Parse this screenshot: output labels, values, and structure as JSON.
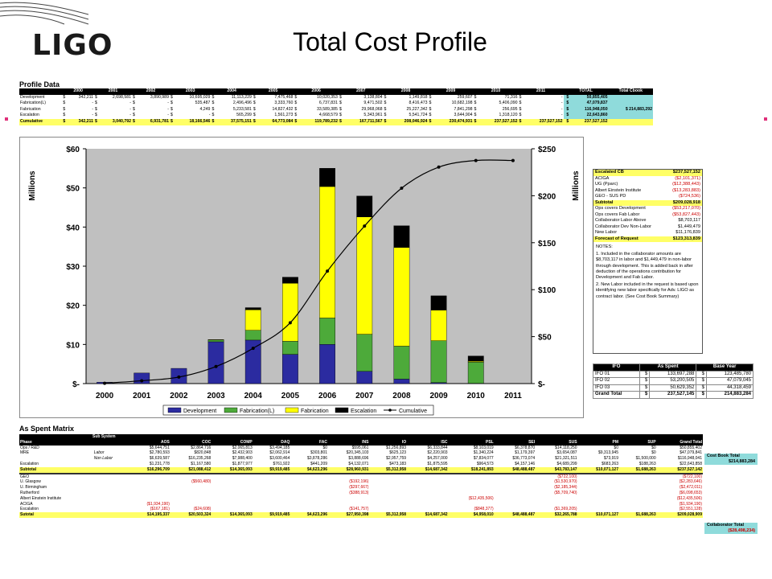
{
  "header": {
    "logo": "LIGO",
    "title": "Total Cost Profile"
  },
  "profile": {
    "title": "Profile Data",
    "columns": [
      "2000",
      "2001",
      "2002",
      "2003",
      "2004",
      "2005",
      "2006",
      "2007",
      "2008",
      "2009",
      "2010",
      "2011",
      "TOTAL",
      "Total Cbook"
    ],
    "rows": [
      {
        "label": "Development",
        "cells": [
          "$",
          "342,211",
          "$",
          "2,698,581",
          "$",
          "3,890,989",
          "$",
          "10,695,029",
          "$",
          "11,113,229",
          "$",
          "7,475,468",
          "$",
          "10,020,353",
          "$",
          "3,138,804",
          "$",
          "1,149,818",
          "$",
          "259,607",
          "$",
          "71,316",
          "$",
          "-",
          "$",
          "50,855,405"
        ],
        "cbook": ""
      },
      {
        "label": "Fabrication(L)",
        "cells": [
          "$",
          "-",
          "$",
          "-",
          "$",
          "-",
          "$",
          "535,487",
          "$",
          "2,496,496",
          "$",
          "3,333,760",
          "$",
          "6,737,831",
          "$",
          "9,471,502",
          "$",
          "8,416,473",
          "$",
          "10,682,198",
          "$",
          "5,406,090",
          "$",
          "-",
          "$",
          "47,079,837"
        ],
        "cbook": ""
      },
      {
        "label": "Fabrication",
        "cells": [
          "$",
          "-",
          "$",
          "-",
          "$",
          "-",
          "$",
          "4,249",
          "$",
          "5,233,581",
          "$",
          "14,827,432",
          "$",
          "33,589,385",
          "$",
          "29,968,068",
          "$",
          "25,227,342",
          "$",
          "7,841,298",
          "$",
          "256,695",
          "$",
          "-",
          "$",
          "116,948,050"
        ],
        "cbook": "$   214,883,292"
      },
      {
        "label": "Escalation",
        "cells": [
          "$",
          "-",
          "$",
          "-",
          "$",
          "-",
          "$",
          "-",
          "$",
          "565,299",
          "$",
          "1,561,273",
          "$",
          "4,668,579",
          "$",
          "5,343,961",
          "$",
          "5,541,724",
          "$",
          "3,644,904",
          "$",
          "1,318,120",
          "$",
          "-",
          "$",
          "22,643,860"
        ],
        "cbook": ""
      },
      {
        "label": "Cumulative",
        "cells": [
          "$",
          "342,211",
          "$",
          "3,040,792",
          "$",
          "6,931,781",
          "$",
          "18,166,546",
          "$",
          "37,575,151",
          "$",
          "64,773,084",
          "$",
          "119,789,232",
          "$",
          "167,711,567",
          "$",
          "208,046,924",
          "$",
          "230,474,931",
          "$",
          "237,527,152",
          "$",
          "237,527,152",
          "$",
          "237,527,152"
        ],
        "cbook": ""
      }
    ]
  },
  "chart_data": {
    "type": "bar",
    "categories": [
      "2000",
      "2001",
      "2002",
      "2003",
      "2004",
      "2005",
      "2006",
      "2007",
      "2008",
      "2009",
      "2010",
      "2011"
    ],
    "ylabel": "Millions",
    "y2label": "Millions",
    "ylim": [
      0,
      60
    ],
    "y2lim": [
      0,
      250
    ],
    "yticks": [
      "$-",
      "$10",
      "$20",
      "$30",
      "$40",
      "$50",
      "$60"
    ],
    "y2ticks": [
      "$-",
      "$50",
      "$100",
      "$150",
      "$200",
      "$250"
    ],
    "series": [
      {
        "name": "Development",
        "color": "#2b2ba0",
        "values": [
          0.342,
          2.699,
          3.891,
          10.695,
          11.113,
          7.475,
          10.02,
          3.139,
          1.15,
          0.26,
          0.071,
          0
        ]
      },
      {
        "name": "Fabrication(L)",
        "color": "#4daa3a",
        "values": [
          0,
          0,
          0,
          0.535,
          2.496,
          3.334,
          6.738,
          9.472,
          8.416,
          10.682,
          5.406,
          0
        ]
      },
      {
        "name": "Fabrication",
        "color": "#ffff00",
        "values": [
          0,
          0,
          0,
          0.004,
          5.234,
          14.827,
          33.589,
          29.968,
          25.227,
          7.841,
          0.257,
          0
        ]
      },
      {
        "name": "Escalation",
        "color": "#000000",
        "values": [
          0,
          0,
          0,
          0,
          0.565,
          1.561,
          4.669,
          5.344,
          5.542,
          3.645,
          1.318,
          0
        ]
      }
    ],
    "line": {
      "name": "Cumulative",
      "axis": "right",
      "values": [
        0.342,
        3.041,
        6.932,
        18.167,
        37.575,
        64.773,
        119.789,
        167.712,
        208.047,
        230.475,
        237.527,
        237.527
      ]
    },
    "legend": "bottom",
    "grid": false
  },
  "cost_box": {
    "rows": [
      {
        "label": "Escalated CB",
        "value": "$237,527,152",
        "hl": true,
        "red": false
      },
      {
        "label": "ACIGA",
        "value": "($2,101,371)",
        "hl": false,
        "red": true
      },
      {
        "label": "UG (Pparc)",
        "value": "($12,388,443)",
        "hl": false,
        "red": true
      },
      {
        "label": "Albert Einstein Institute",
        "value": "($13,283,883)",
        "hl": false,
        "red": true
      },
      {
        "label": "GEO - SUS PD",
        "value": "($724,536)",
        "hl": false,
        "red": true
      },
      {
        "label": "Subtotal",
        "value": "$209,028,918",
        "hl": true,
        "red": false
      },
      {
        "label": "Ops covers Development",
        "value": "($53,217,070)",
        "hl": false,
        "red": true
      },
      {
        "label": "Ops covers Fab Labor",
        "value": "($53,827,443)",
        "hl": false,
        "red": true
      },
      {
        "label": "Collaborator Labor Above",
        "value": "$8,703,117",
        "hl": false,
        "red": false
      },
      {
        "label": "Collaborator Dev Non-Labor",
        "value": "$1,449,479",
        "hl": false,
        "red": false
      },
      {
        "label": "New Labor",
        "value": "$11,176,839",
        "hl": false,
        "red": false
      },
      {
        "label": "Forecast of Request",
        "value": "$123,313,839",
        "hl": true,
        "red": false
      }
    ],
    "notes_title": "NOTES:",
    "note1": "1.  Included in the collaborator amounts are $8,703,117 in labor and $1,449,479 in non-labor through development.  This is added back in after deduction of the operations contribution for Development and Fab Labor.",
    "note2": "2.  New Labor included in the request is based upon identifying new labor specifically for Adv. LIGO as contract labor.  (See Cost Book Summary)"
  },
  "ifo": {
    "headers": [
      "IFO",
      "As Spent",
      "Base Year"
    ],
    "rows": [
      [
        "IFO 01",
        "$",
        "133,697,288",
        "$",
        "123,485,780"
      ],
      [
        "IFO 02",
        "$",
        "53,200,505",
        "$",
        "47,079,045"
      ],
      [
        "IFO 03",
        "$",
        "50,629,352",
        "$",
        "44,318,459"
      ],
      [
        "Grand Total",
        "$",
        "237,527,145",
        "$",
        "214,883,284"
      ]
    ]
  },
  "matrix": {
    "title": "As Spent Matrix",
    "subsystem_label": "Sub System",
    "headers": [
      "Phase",
      "",
      "AOS",
      "COC",
      "COMP",
      "DAQ",
      "FAC",
      "INS",
      "IO",
      "ISC",
      "PSL",
      "SEI",
      "SUS",
      "PM",
      "SUP",
      "Grand Total"
    ],
    "rows": [
      {
        "c": [
          "Ops / R&D",
          "",
          "$5,644,751",
          "$2,864,716",
          "$2,065,813",
          "$3,494,185",
          "$0",
          "$595,061",
          "$1,256,893",
          "$6,333,844",
          "$8,103,019",
          "$6,378,870",
          "$14,118,250",
          "$0",
          "$0",
          "$50,855,402"
        ],
        "style": ""
      },
      {
        "c": [
          "MRE",
          "Labor",
          "$2,780,593",
          "$820,848",
          "$2,432,903",
          "$2,062,914",
          "$303,801",
          "$20,345,103",
          "$625,123",
          "$2,220,903",
          "$1,340,224",
          "$1,179,397",
          "$3,654,087",
          "$9,313,945",
          "$0",
          "$47,079,841"
        ],
        "style": ""
      },
      {
        "c": [
          "",
          "Non Labor",
          "$6,639,587",
          "$16,235,268",
          "$7,988,400",
          "$3,600,464",
          "$3,878,286",
          "$3,888,696",
          "$2,957,759",
          "$4,257,000",
          "$7,834,077",
          "$36,773,074",
          "$21,321,511",
          "$73,919",
          "$1,500,000",
          "$116,948,041"
        ],
        "style": ""
      },
      {
        "c": [
          "Escalation",
          "",
          "$1,231,778",
          "$1,167,580",
          "$1,877,977",
          "$761,922",
          "$441,209",
          "$4,132,071",
          "$473,183",
          "$1,875,595",
          "$964,573",
          "$4,157,146",
          "$4,689,299",
          "$683,263",
          "$188,263",
          "$22,643,858"
        ],
        "style": ""
      },
      {
        "c": [
          "Subtotal",
          "",
          "$16,296,709",
          "$21,088,412",
          "$14,365,093",
          "$9,919,485",
          "$4,623,296",
          "$28,960,931",
          "$5,312,958",
          "$14,687,342",
          "$18,241,893",
          "$48,488,487",
          "$43,783,147",
          "$10,071,127",
          "$1,688,263",
          "$237,527,142"
        ],
        "style": "y"
      },
      {
        "c": [
          "",
          "",
          "",
          "",
          "",
          "",
          "",
          "",
          "",
          "",
          "",
          "",
          "",
          "",
          "",
          ""
        ],
        "style": "sep"
      },
      {
        "c": [
          "GEO",
          "",
          "",
          "",
          "",
          "",
          "",
          "",
          "",
          "",
          "",
          "",
          "($722,100)",
          "",
          "",
          "($722,100)"
        ],
        "style": ""
      },
      {
        "c": [
          "U. Glasgow",
          "",
          "",
          "($560,480)",
          "",
          "",
          "",
          "($192,196)",
          "",
          "",
          "",
          "",
          "($1,530,970)",
          "",
          "",
          "($2,283,646)"
        ],
        "style": ""
      },
      {
        "c": [
          "U. Birmingham",
          "",
          "",
          "",
          "",
          "",
          "",
          "($297,667)",
          "",
          "",
          "",
          "",
          "($2,185,344)",
          "",
          "",
          "($2,472,011)"
        ],
        "style": ""
      },
      {
        "c": [
          "Rutherford",
          "",
          "",
          "",
          "",
          "",
          "",
          "($388,913)",
          "",
          "",
          "",
          "",
          "($5,709,740)",
          "",
          "",
          "($6,098,653)"
        ],
        "style": ""
      },
      {
        "c": [
          "",
          "",
          "",
          "",
          "",
          "",
          "",
          "",
          "",
          "",
          "",
          "",
          "",
          "",
          "",
          ""
        ],
        "style": ""
      },
      {
        "c": [
          "Albert Einstein Institute",
          "",
          "",
          "",
          "",
          "",
          "",
          "",
          "",
          "",
          "($12,435,506)",
          "",
          "",
          "",
          "",
          "($12,435,506)"
        ],
        "style": ""
      },
      {
        "c": [
          "ACIGA",
          "",
          "($1,934,190)",
          "",
          "",
          "",
          "",
          "",
          "",
          "",
          "",
          "",
          "",
          "",
          "",
          "($1,934,190)"
        ],
        "style": ""
      },
      {
        "c": [
          "Escalation",
          "",
          "($167,181)",
          "($24,608)",
          "",
          "",
          "",
          "($141,757)",
          "",
          "",
          "($848,377)",
          "",
          "($1,369,205)",
          "",
          "",
          "($2,551,128)"
        ],
        "style": ""
      },
      {
        "c": [
          "Sutotal",
          "",
          "$14,195,337",
          "$20,503,324",
          "$14,365,093",
          "$9,919,485",
          "$4,623,296",
          "$27,950,398",
          "$5,312,958",
          "$14,687,342",
          "$4,958,010",
          "$48,488,487",
          "$32,265,788",
          "$10,071,127",
          "$1,688,263",
          "$209,028,909"
        ],
        "style": "y"
      }
    ],
    "cost_book_label": "Cost Book Total",
    "cost_book_value": "$214,883,284",
    "collab_label": "Collaborator Total",
    "collab_value": "($28,498,234)"
  }
}
